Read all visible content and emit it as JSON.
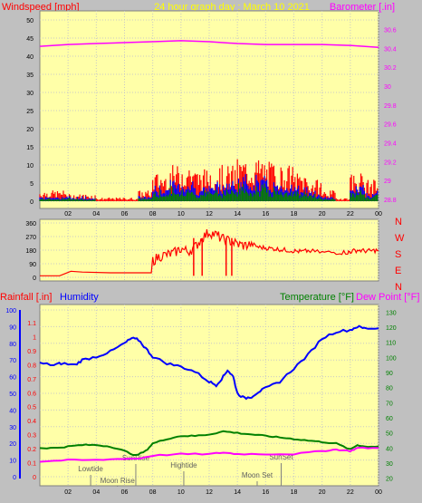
{
  "header": {
    "left": "Windspeed [mph]",
    "center": "24 hour graph day : March 10 2021",
    "right": "Barometer [.in]"
  },
  "chart_data": [
    {
      "type": "bar",
      "name_key": "wind",
      "xlabel": "",
      "ylabel": "Windspeed [mph]",
      "y2label": "Barometer [.in]",
      "xlim": [
        0,
        24
      ],
      "ylim": [
        0,
        50
      ],
      "y2lim": [
        28.8,
        30.7
      ],
      "x_ticks": [
        "02",
        "04",
        "06",
        "08",
        "10",
        "12",
        "14",
        "16",
        "18",
        "20",
        "22",
        "00"
      ],
      "y_ticks": [
        0,
        5,
        10,
        15,
        20,
        25,
        30,
        35,
        40,
        45,
        50
      ],
      "y2_ticks": [
        "28.8",
        "29",
        "29.2",
        "29.4",
        "29.6",
        "29.8",
        "30",
        "30.2",
        "30.4",
        "30.6"
      ],
      "gust_hourly_max": [
        3,
        3,
        2,
        2,
        1,
        1,
        1,
        3,
        8,
        10,
        11,
        9,
        10,
        10,
        12,
        12,
        11,
        10,
        8,
        6,
        3,
        1,
        8,
        6
      ],
      "avg_hourly": [
        1,
        1,
        1,
        1,
        0,
        0,
        0,
        1,
        3,
        4,
        4,
        3,
        4,
        4,
        5,
        5,
        4,
        4,
        3,
        2,
        1,
        0,
        3,
        2
      ],
      "barometer_points": [
        [
          0,
          30.42
        ],
        [
          2,
          30.44
        ],
        [
          4,
          30.45
        ],
        [
          6,
          30.46
        ],
        [
          8,
          30.47
        ],
        [
          10,
          30.48
        ],
        [
          12,
          30.47
        ],
        [
          14,
          30.45
        ],
        [
          16,
          30.44
        ],
        [
          18,
          30.44
        ],
        [
          20,
          30.44
        ],
        [
          22,
          30.43
        ],
        [
          24,
          30.41
        ]
      ],
      "colors": {
        "gust": "#ff0000",
        "avg": "#0000ff",
        "low": "#008000",
        "barometer": "#ff00ff"
      }
    },
    {
      "type": "line",
      "name_key": "direction",
      "ylabel": "",
      "xlim": [
        0,
        24
      ],
      "ylim": [
        0,
        360
      ],
      "y_ticks": [
        0,
        90,
        180,
        270,
        360
      ],
      "compass": [
        "N",
        "W",
        "S",
        "E",
        "N"
      ],
      "points": [
        [
          0,
          10
        ],
        [
          1.4,
          10
        ],
        [
          1.8,
          25
        ],
        [
          2.2,
          40
        ],
        [
          3,
          35
        ],
        [
          5,
          30
        ],
        [
          7,
          30
        ],
        [
          7.9,
          30
        ],
        [
          8,
          110
        ],
        [
          8.5,
          140
        ],
        [
          9,
          150
        ],
        [
          9.5,
          160
        ],
        [
          10,
          190
        ],
        [
          10.5,
          170
        ],
        [
          11,
          200
        ],
        [
          11.5,
          260
        ],
        [
          12,
          300
        ],
        [
          12.5,
          280
        ],
        [
          13,
          250
        ],
        [
          13.5,
          240
        ],
        [
          14,
          220
        ],
        [
          14.5,
          210
        ],
        [
          15,
          220
        ],
        [
          15.5,
          200
        ],
        [
          16,
          195
        ],
        [
          16.5,
          190
        ],
        [
          17,
          185
        ],
        [
          17.5,
          180
        ],
        [
          18,
          175
        ],
        [
          18.5,
          170
        ],
        [
          19,
          175
        ],
        [
          20,
          165
        ],
        [
          21,
          165
        ],
        [
          21.8,
          165
        ],
        [
          22,
          170
        ],
        [
          22.5,
          180
        ],
        [
          23,
          175
        ],
        [
          23.5,
          175
        ],
        [
          24,
          180
        ]
      ],
      "drop_spikes_x": [
        11.5,
        13.2,
        13.6,
        10.9
      ],
      "color": "#ff0000"
    },
    {
      "type": "line",
      "name_key": "weather",
      "ylabel": "Rainfall [.in]",
      "humidity_label": "Humidity",
      "temp_label": "Temperature [°F]",
      "dew_label": "Dew Point [°F]",
      "xlim": [
        0,
        24
      ],
      "ylim": [
        0,
        100
      ],
      "y_ticks": [
        0,
        10,
        20,
        30,
        40,
        50,
        60,
        70,
        80,
        90,
        100
      ],
      "rain_ticks": [
        "0",
        "0.1",
        "0.2",
        "0.3",
        "0.4",
        "0.5",
        "0.6",
        "0.7",
        "0.8",
        "0.9",
        "1",
        "1.1"
      ],
      "temp_ticks": [
        "20",
        "30",
        "40",
        "50",
        "60",
        "70",
        "80",
        "90",
        "100",
        "110",
        "120",
        "130"
      ],
      "humidity_points": [
        [
          0,
          68
        ],
        [
          1,
          67
        ],
        [
          1.5,
          68
        ],
        [
          2.5,
          67
        ],
        [
          3,
          70
        ],
        [
          4,
          72
        ],
        [
          5,
          75
        ],
        [
          6,
          80
        ],
        [
          6.5,
          83
        ],
        [
          7,
          82
        ],
        [
          7.5,
          77
        ],
        [
          8,
          72
        ],
        [
          9,
          68
        ],
        [
          10,
          66
        ],
        [
          11,
          63
        ],
        [
          12,
          57
        ],
        [
          12.5,
          55
        ],
        [
          13,
          60
        ],
        [
          13.3,
          64
        ],
        [
          13.7,
          60
        ],
        [
          14,
          50
        ],
        [
          14.5,
          47
        ],
        [
          15,
          48
        ],
        [
          15.5,
          51
        ],
        [
          16,
          53
        ],
        [
          17,
          57
        ],
        [
          18,
          65
        ],
        [
          19,
          73
        ],
        [
          20,
          83
        ],
        [
          21,
          87
        ],
        [
          22,
          88
        ],
        [
          22.5,
          90
        ],
        [
          23,
          89
        ],
        [
          24,
          89
        ]
      ],
      "temp_points": [
        [
          0,
          40
        ],
        [
          1,
          40
        ],
        [
          2,
          41
        ],
        [
          3,
          42
        ],
        [
          4,
          42
        ],
        [
          5,
          41
        ],
        [
          6,
          38
        ],
        [
          6.8,
          35
        ],
        [
          7.5,
          38
        ],
        [
          8,
          43
        ],
        [
          9,
          46
        ],
        [
          10,
          48
        ],
        [
          11,
          48
        ],
        [
          12,
          49
        ],
        [
          13,
          51
        ],
        [
          14,
          50
        ],
        [
          15,
          49
        ],
        [
          16,
          48
        ],
        [
          17,
          47
        ],
        [
          18,
          46
        ],
        [
          19,
          45
        ],
        [
          20,
          44
        ],
        [
          21,
          43
        ],
        [
          22,
          39
        ],
        [
          22.5,
          42
        ],
        [
          23,
          41
        ],
        [
          24,
          41
        ]
      ],
      "dew_points": [
        [
          0,
          31
        ],
        [
          2,
          32
        ],
        [
          4,
          32
        ],
        [
          6,
          33
        ],
        [
          7,
          33
        ],
        [
          8,
          35
        ],
        [
          10,
          36
        ],
        [
          12,
          36
        ],
        [
          13,
          37
        ],
        [
          14,
          36
        ],
        [
          16,
          36
        ],
        [
          18,
          36
        ],
        [
          20,
          38
        ],
        [
          21,
          39
        ],
        [
          22,
          38
        ],
        [
          22.5,
          40
        ],
        [
          24,
          40
        ]
      ],
      "temp_lim": [
        15,
        135
      ],
      "events": {
        "lowtide": "Lowtide",
        "moonrise": "Moon Rise",
        "sunrise": "SunRise",
        "hightide": "Hightide",
        "moonset": "Moon Set",
        "sunset": "SunSet"
      },
      "x_ticks": [
        "02",
        "04",
        "06",
        "08",
        "10",
        "12",
        "14",
        "16",
        "18",
        "20",
        "22",
        "00"
      ],
      "colors": {
        "humidity": "#0000ff",
        "temp": "#008000",
        "dew": "#ff00ff"
      }
    }
  ]
}
